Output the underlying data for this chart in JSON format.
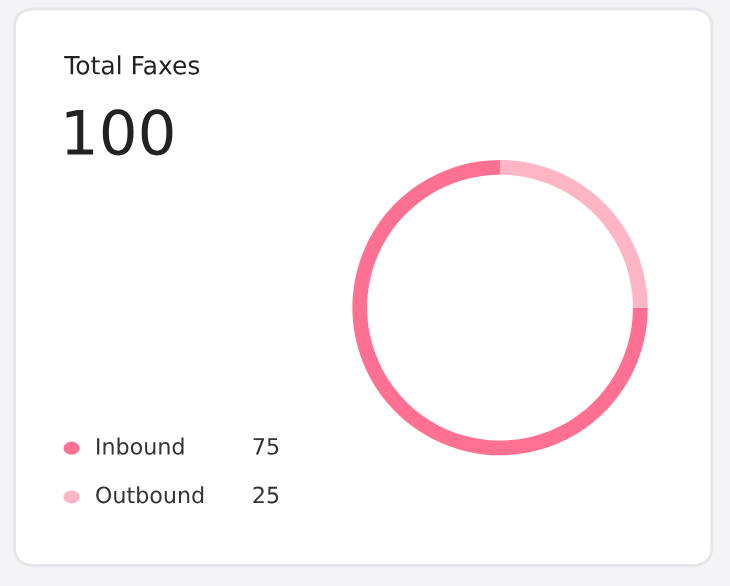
{
  "chart_data": {
    "type": "donut",
    "title": "Total Faxes",
    "subtitle": "100",
    "categories": [
      "Inbound",
      "Outbound"
    ],
    "values": [
      75,
      25
    ],
    "colors": [
      "#ff7093",
      "#ffb5c5"
    ],
    "legend": "bottom left",
    "data_labels": true
  }
}
